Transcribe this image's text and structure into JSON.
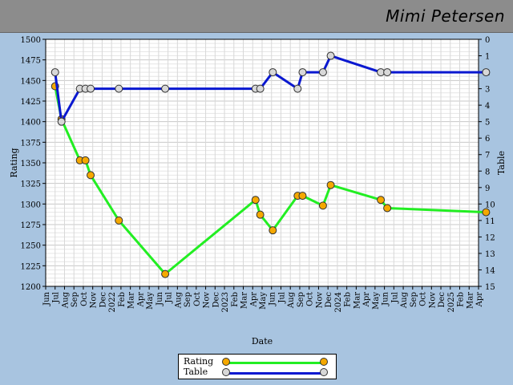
{
  "header": {
    "player_name": "Mimi Petersen"
  },
  "colors": {
    "rating_line": "#22ee22",
    "rating_marker": "#f5a800",
    "table_line": "#0a18d0",
    "table_marker": "#d8d8d8",
    "background": "#a8c4e0",
    "plot_bg": "#ffffff"
  },
  "chart_data": {
    "type": "line",
    "xlabel": "Date",
    "ylabel_left": "Rating",
    "ylabel_right": "Table",
    "ylim_left": [
      1200,
      1500
    ],
    "ylim_right": [
      0,
      15
    ],
    "right_axis_inverted": true,
    "grid": true,
    "legend_position": "bottom-center",
    "x_ticks": [
      "Jun",
      "Jul",
      "Aug",
      "Sep",
      "Oct",
      "Nov",
      "Dec",
      "2022",
      "Feb",
      "Mar",
      "Apr",
      "May",
      "Jun",
      "Jul",
      "Aug",
      "Sep",
      "Oct",
      "Nov",
      "Dec",
      "2023",
      "Feb",
      "Mar",
      "Apr",
      "May",
      "Jun",
      "Jul",
      "Aug",
      "Sep",
      "Oct",
      "Nov",
      "Dec",
      "2024",
      "Feb",
      "Mar",
      "Apr",
      "May",
      "Jun",
      "Jul",
      "Aug",
      "Sep",
      "Oct",
      "Nov",
      "Dec",
      "2025",
      "Feb",
      "Mar",
      "Apr"
    ],
    "y_ticks_left": [
      1200,
      1225,
      1250,
      1275,
      1300,
      1325,
      1350,
      1375,
      1400,
      1425,
      1450,
      1475,
      1500
    ],
    "y_ticks_right": [
      0,
      1,
      2,
      3,
      4,
      5,
      6,
      7,
      8,
      9,
      10,
      11,
      12,
      13,
      14,
      15
    ],
    "series": [
      {
        "name": "Rating",
        "axis": "left",
        "x": [
          "2021-07-01",
          "2021-07-22",
          "2021-09-20",
          "2021-10-08",
          "2021-10-25",
          "2022-01-25",
          "2022-06-22",
          "2023-04-10",
          "2023-04-25",
          "2023-06-05",
          "2023-08-25",
          "2023-09-10",
          "2023-11-15",
          "2023-12-10",
          "2024-05-20",
          "2024-06-10",
          "2025-04-25"
        ],
        "y": [
          1443,
          1403,
          1353,
          1353,
          1335,
          1280,
          1215,
          1305,
          1287,
          1268,
          1310,
          1310,
          1298,
          1323,
          1305,
          1295,
          1290
        ]
      },
      {
        "name": "Table",
        "axis": "right",
        "x": [
          "2021-07-01",
          "2021-07-22",
          "2021-09-20",
          "2021-10-08",
          "2021-10-25",
          "2022-01-25",
          "2022-06-22",
          "2023-04-10",
          "2023-04-25",
          "2023-06-05",
          "2023-08-25",
          "2023-09-10",
          "2023-11-15",
          "2023-12-10",
          "2024-05-20",
          "2024-06-10",
          "2025-04-25"
        ],
        "y": [
          2,
          5,
          3,
          3,
          3,
          3,
          3,
          3,
          3,
          2,
          3,
          2,
          2,
          1,
          2,
          2,
          2
        ]
      }
    ]
  }
}
